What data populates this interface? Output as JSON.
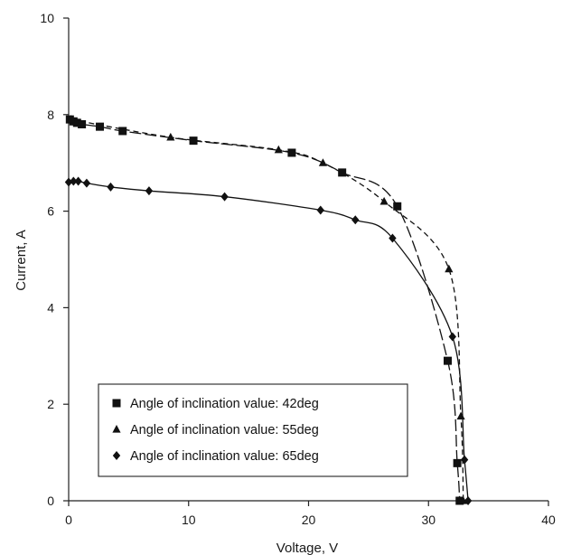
{
  "chart_data": {
    "type": "line",
    "title": "",
    "xlabel": "Voltage, V",
    "ylabel": "Current, A",
    "xlim": [
      0,
      40
    ],
    "ylim": [
      0,
      10
    ],
    "xticks": [
      0,
      10,
      20,
      30,
      40
    ],
    "yticks": [
      0,
      2,
      4,
      6,
      8,
      10
    ],
    "grid": false,
    "legend_position": "bottom-left",
    "series": [
      {
        "name": "Angle of inclination value: 42deg",
        "marker": "square",
        "line_style": "long-dash",
        "x": [
          0.1,
          0.4,
          0.7,
          1.1,
          2.6,
          4.5,
          10.4,
          18.6,
          22.8,
          27.4,
          31.6,
          32.4,
          32.6
        ],
        "y": [
          7.9,
          7.86,
          7.83,
          7.8,
          7.75,
          7.66,
          7.46,
          7.21,
          6.8,
          6.1,
          2.9,
          0.78,
          0.0
        ]
      },
      {
        "name": "Angle of inclination value: 55deg",
        "marker": "triangle",
        "line_style": "short-dash",
        "x": [
          0.2,
          8.5,
          17.5,
          21.2,
          26.3,
          31.7,
          32.7,
          32.9
        ],
        "y": [
          7.9,
          7.53,
          7.27,
          7.0,
          6.2,
          4.8,
          1.75,
          0.0
        ]
      },
      {
        "name": "Angle of inclination value: 65deg",
        "marker": "diamond",
        "line_style": "solid",
        "x": [
          0.0,
          0.4,
          0.8,
          1.5,
          3.5,
          6.7,
          13.0,
          21.0,
          23.9,
          27.0,
          32.0,
          33.0,
          33.3
        ],
        "y": [
          6.6,
          6.62,
          6.62,
          6.58,
          6.5,
          6.42,
          6.3,
          6.02,
          5.82,
          5.44,
          3.4,
          0.85,
          0.0
        ]
      }
    ]
  }
}
